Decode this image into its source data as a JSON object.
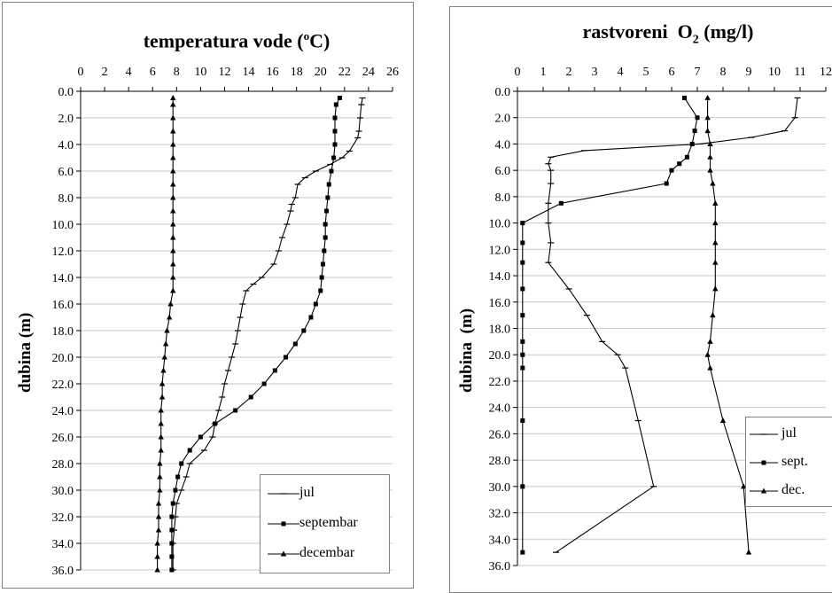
{
  "chart_data": [
    {
      "type": "line",
      "title": "temperatura vode (",
      "title_sup": "o",
      "title_end": "C)",
      "ylabel": "dubina (m)",
      "xlim": [
        0,
        26
      ],
      "ylim": [
        0,
        36
      ],
      "x_ticks": [
        "0",
        "2",
        "4",
        "6",
        "8",
        "10",
        "12",
        "14",
        "16",
        "18",
        "20",
        "22",
        "24",
        "26"
      ],
      "y_ticks": [
        "0.0",
        "2.0",
        "4.0",
        "6.0",
        "8.0",
        "10.0",
        "12.0",
        "14.0",
        "16.0",
        "18.0",
        "20.0",
        "22.0",
        "24.0",
        "26.0",
        "28.0",
        "30.0",
        "32.0",
        "34.0",
        "36.0"
      ],
      "x_axis_position": "top",
      "y_axis_inverted": true,
      "grid": "horizontal",
      "legend_position": "bottom-right",
      "series": [
        {
          "name": "jul",
          "marker": "tick",
          "points": [
            [
              23.5,
              0.5
            ],
            [
              23.4,
              1.0
            ],
            [
              23.3,
              2.0
            ],
            [
              23.2,
              3.0
            ],
            [
              23.1,
              3.5
            ],
            [
              22.4,
              4.5
            ],
            [
              21.8,
              5.0
            ],
            [
              20.8,
              5.5
            ],
            [
              19.6,
              6.0
            ],
            [
              18.7,
              6.5
            ],
            [
              18.1,
              7.0
            ],
            [
              17.9,
              8.0
            ],
            [
              17.6,
              8.5
            ],
            [
              17.5,
              9.0
            ],
            [
              17.2,
              10.0
            ],
            [
              16.8,
              11.0
            ],
            [
              16.5,
              12.0
            ],
            [
              16.1,
              13.0
            ],
            [
              15.1,
              14.0
            ],
            [
              14.4,
              14.5
            ],
            [
              13.8,
              15.0
            ],
            [
              13.5,
              16.0
            ],
            [
              13.3,
              17.0
            ],
            [
              13.1,
              18.0
            ],
            [
              12.9,
              19.0
            ],
            [
              12.6,
              20.0
            ],
            [
              12.3,
              21.0
            ],
            [
              12.0,
              22.0
            ],
            [
              11.8,
              23.0
            ],
            [
              11.5,
              24.0
            ],
            [
              11.2,
              25.0
            ],
            [
              11.0,
              26.0
            ],
            [
              10.3,
              27.0
            ],
            [
              9.1,
              28.0
            ],
            [
              8.8,
              29.0
            ],
            [
              8.4,
              30.0
            ],
            [
              8.0,
              31.0
            ],
            [
              7.9,
              32.0
            ],
            [
              7.8,
              33.0
            ],
            [
              7.7,
              34.0
            ],
            [
              7.7,
              36.0
            ]
          ]
        },
        {
          "name": "septembar",
          "marker": "square",
          "points": [
            [
              21.6,
              0.5
            ],
            [
              21.3,
              1.0
            ],
            [
              21.2,
              2.0
            ],
            [
              21.2,
              3.0
            ],
            [
              21.2,
              4.0
            ],
            [
              21.1,
              5.0
            ],
            [
              20.9,
              6.0
            ],
            [
              20.7,
              7.0
            ],
            [
              20.6,
              8.0
            ],
            [
              20.5,
              9.0
            ],
            [
              20.4,
              10.0
            ],
            [
              20.4,
              11.0
            ],
            [
              20.3,
              12.0
            ],
            [
              20.2,
              13.0
            ],
            [
              20.1,
              14.0
            ],
            [
              20.0,
              15.0
            ],
            [
              19.6,
              16.0
            ],
            [
              19.2,
              17.0
            ],
            [
              18.6,
              18.0
            ],
            [
              17.9,
              19.0
            ],
            [
              17.1,
              20.0
            ],
            [
              16.2,
              21.0
            ],
            [
              15.3,
              22.0
            ],
            [
              14.2,
              23.0
            ],
            [
              12.9,
              24.0
            ],
            [
              11.2,
              25.0
            ],
            [
              10.0,
              26.0
            ],
            [
              9.1,
              27.0
            ],
            [
              8.4,
              28.0
            ],
            [
              8.1,
              29.0
            ],
            [
              7.9,
              30.0
            ],
            [
              7.7,
              31.0
            ],
            [
              7.6,
              32.0
            ],
            [
              7.6,
              33.0
            ],
            [
              7.6,
              34.0
            ],
            [
              7.6,
              35.0
            ],
            [
              7.6,
              36.0
            ]
          ]
        },
        {
          "name": "decembar",
          "marker": "triangle",
          "points": [
            [
              7.7,
              0.5
            ],
            [
              7.7,
              1.0
            ],
            [
              7.7,
              2.0
            ],
            [
              7.7,
              3.0
            ],
            [
              7.7,
              4.0
            ],
            [
              7.7,
              5.0
            ],
            [
              7.7,
              6.0
            ],
            [
              7.7,
              7.0
            ],
            [
              7.7,
              8.0
            ],
            [
              7.7,
              9.0
            ],
            [
              7.7,
              10.0
            ],
            [
              7.7,
              11.0
            ],
            [
              7.7,
              12.0
            ],
            [
              7.7,
              13.0
            ],
            [
              7.7,
              14.0
            ],
            [
              7.7,
              15.0
            ],
            [
              7.5,
              16.0
            ],
            [
              7.4,
              17.0
            ],
            [
              7.2,
              18.0
            ],
            [
              7.1,
              19.0
            ],
            [
              7.0,
              20.0
            ],
            [
              6.9,
              21.0
            ],
            [
              6.8,
              22.0
            ],
            [
              6.8,
              23.0
            ],
            [
              6.7,
              24.0
            ],
            [
              6.7,
              25.0
            ],
            [
              6.7,
              26.0
            ],
            [
              6.7,
              27.0
            ],
            [
              6.6,
              28.0
            ],
            [
              6.6,
              29.0
            ],
            [
              6.6,
              30.0
            ],
            [
              6.5,
              31.0
            ],
            [
              6.5,
              32.0
            ],
            [
              6.5,
              33.0
            ],
            [
              6.4,
              34.0
            ],
            [
              6.4,
              35.0
            ],
            [
              6.4,
              36.0
            ]
          ]
        }
      ]
    },
    {
      "type": "line",
      "title": "rastvoreni  O",
      "title_sub": "2",
      "title_end": " (mg/l)",
      "ylabel": "dubina  (m)",
      "xlim": [
        0,
        12
      ],
      "ylim": [
        0,
        36
      ],
      "x_ticks": [
        "0",
        "1",
        "2",
        "3",
        "4",
        "5",
        "6",
        "7",
        "8",
        "9",
        "10",
        "11",
        "12"
      ],
      "y_ticks": [
        "0.0",
        "2.0",
        "4.0",
        "6.0",
        "8.0",
        "10.0",
        "12.0",
        "14.0",
        "16.0",
        "18.0",
        "20.0",
        "22.0",
        "24.0",
        "26.0",
        "28.0",
        "30.0",
        "32.0",
        "34.0",
        "36.0"
      ],
      "x_axis_position": "top",
      "y_axis_inverted": true,
      "grid": "horizontal",
      "legend_position": "bottom-right",
      "series": [
        {
          "name": "jul",
          "marker": "tick",
          "points": [
            [
              10.9,
              0.5
            ],
            [
              10.8,
              2.0
            ],
            [
              10.4,
              3.0
            ],
            [
              9.1,
              3.5
            ],
            [
              7.1,
              4.0
            ],
            [
              2.6,
              4.5
            ],
            [
              1.3,
              5.0
            ],
            [
              1.2,
              5.5
            ],
            [
              1.3,
              6.0
            ],
            [
              1.3,
              7.0
            ],
            [
              1.2,
              8.5
            ],
            [
              1.2,
              10.0
            ],
            [
              1.3,
              11.5
            ],
            [
              1.2,
              13.0
            ],
            [
              2.0,
              15.0
            ],
            [
              2.7,
              17.0
            ],
            [
              3.3,
              19.0
            ],
            [
              3.9,
              20.0
            ],
            [
              4.2,
              21.0
            ],
            [
              4.7,
              25.0
            ],
            [
              5.3,
              30.0
            ],
            [
              1.5,
              35.0
            ]
          ]
        },
        {
          "name": "sept.",
          "marker": "square",
          "points": [
            [
              6.5,
              0.5
            ],
            [
              7.0,
              2.0
            ],
            [
              6.9,
              3.0
            ],
            [
              6.8,
              4.0
            ],
            [
              6.6,
              5.0
            ],
            [
              6.3,
              5.5
            ],
            [
              6.0,
              6.0
            ],
            [
              5.8,
              7.0
            ],
            [
              1.7,
              8.5
            ],
            [
              0.2,
              10.0
            ],
            [
              0.2,
              11.5
            ],
            [
              0.2,
              13.0
            ],
            [
              0.2,
              15.0
            ],
            [
              0.2,
              17.0
            ],
            [
              0.2,
              19.0
            ],
            [
              0.2,
              20.0
            ],
            [
              0.2,
              21.0
            ],
            [
              0.2,
              25.0
            ],
            [
              0.2,
              30.0
            ],
            [
              0.2,
              35.0
            ]
          ]
        },
        {
          "name": "dec.",
          "marker": "triangle",
          "points": [
            [
              7.4,
              0.5
            ],
            [
              7.4,
              2.0
            ],
            [
              7.4,
              3.0
            ],
            [
              7.5,
              4.0
            ],
            [
              7.5,
              5.0
            ],
            [
              7.5,
              6.0
            ],
            [
              7.6,
              7.0
            ],
            [
              7.7,
              8.5
            ],
            [
              7.7,
              10.0
            ],
            [
              7.7,
              11.5
            ],
            [
              7.7,
              13.0
            ],
            [
              7.7,
              15.0
            ],
            [
              7.6,
              17.0
            ],
            [
              7.5,
              19.0
            ],
            [
              7.4,
              20.0
            ],
            [
              7.5,
              21.0
            ],
            [
              8.0,
              25.0
            ],
            [
              8.8,
              30.0
            ],
            [
              9.0,
              35.0
            ]
          ]
        }
      ]
    }
  ]
}
